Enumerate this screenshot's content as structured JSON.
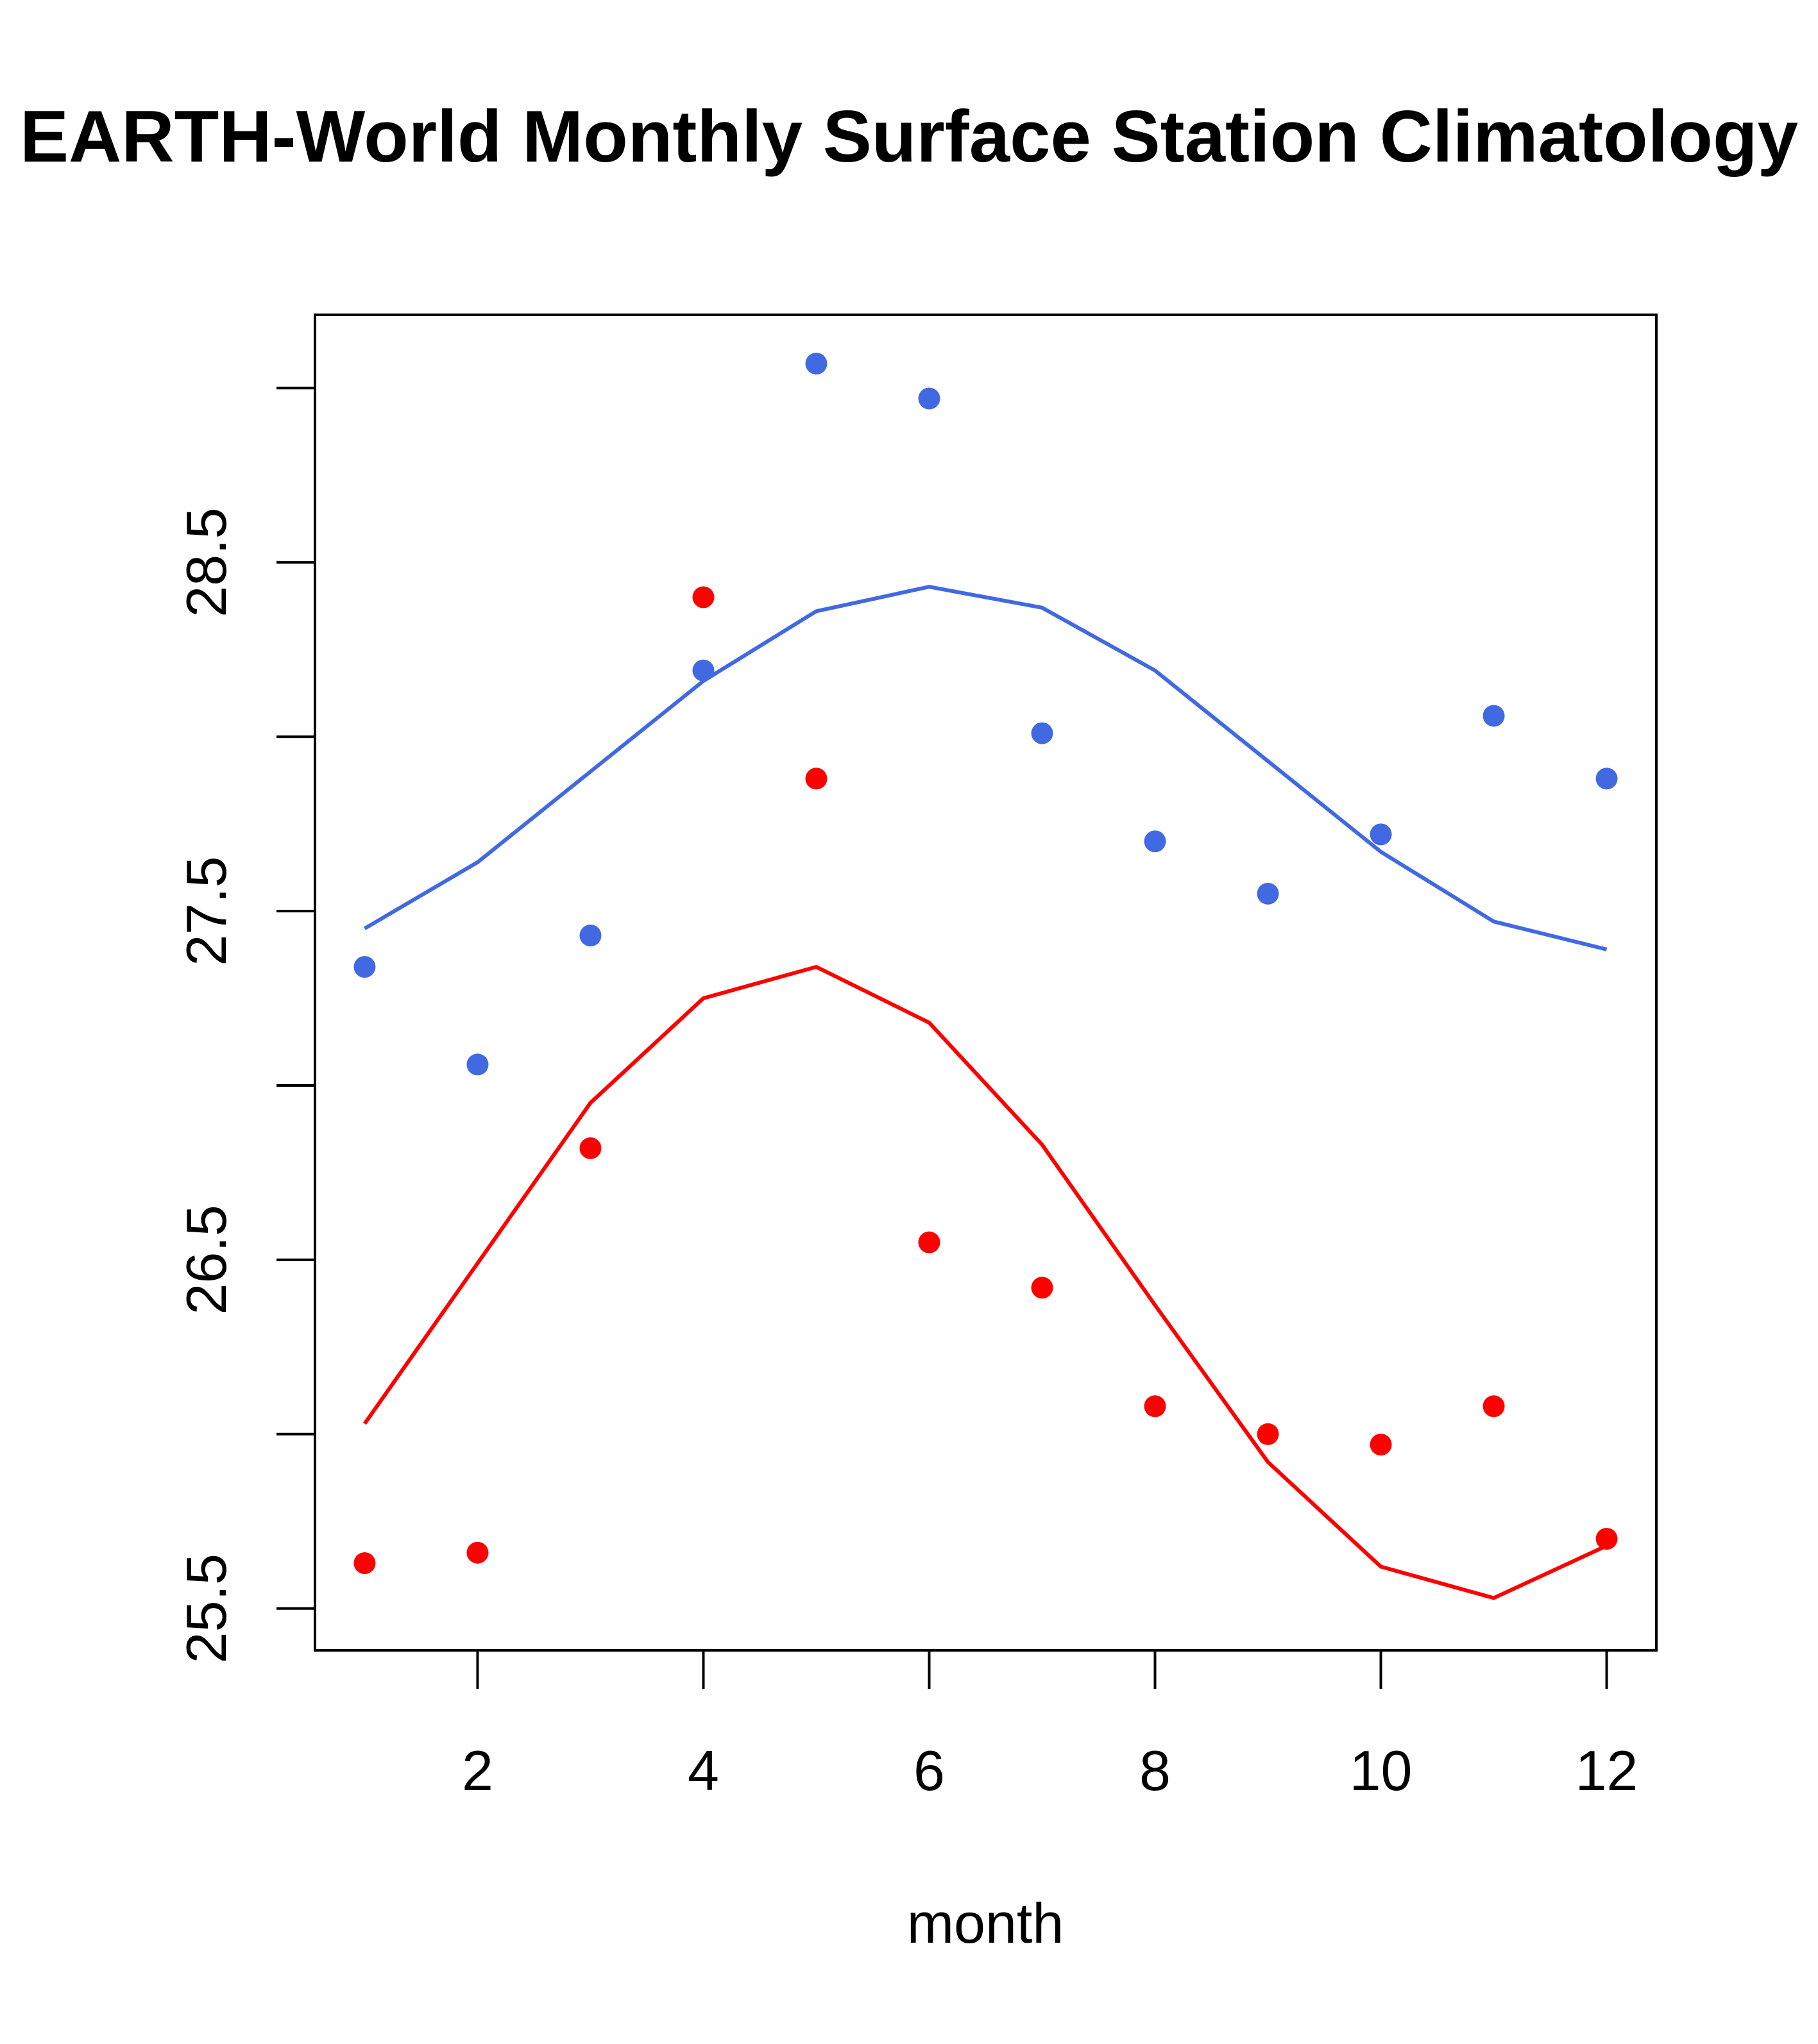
{
  "chart_data": {
    "type": "line",
    "title": "EARTH-World Monthly Surface Station Climatology",
    "xlabel": "month",
    "ylabel": "",
    "xlim": [
      0.56,
      12.44
    ],
    "ylim": [
      25.38,
      29.21
    ],
    "x_ticks": [
      2,
      4,
      6,
      8,
      10,
      12
    ],
    "x_tick_labels": [
      "2",
      "4",
      "6",
      "8",
      "10",
      "12"
    ],
    "y_ticks": [
      25.5,
      26.0,
      26.5,
      27.0,
      27.5,
      28.0,
      28.5,
      29.0
    ],
    "y_tick_labels": [
      "25.5",
      "",
      "26.5",
      "",
      "27.5",
      "",
      "28.5",
      ""
    ],
    "grid": false,
    "legend": "none",
    "x": [
      1,
      2,
      3,
      4,
      5,
      6,
      7,
      8,
      9,
      10,
      11,
      12
    ],
    "series": [
      {
        "name": "blue-points",
        "kind": "points",
        "color": "#4169E1",
        "values": [
          27.34,
          27.06,
          27.43,
          28.19,
          29.07,
          28.97,
          28.01,
          27.7,
          27.55,
          27.72,
          28.06,
          27.88
        ]
      },
      {
        "name": "blue-line",
        "kind": "line",
        "color": "#4169E1",
        "values": [
          27.45,
          27.64,
          27.9,
          28.16,
          28.36,
          28.43,
          28.37,
          28.19,
          27.93,
          27.67,
          27.47,
          27.39
        ]
      },
      {
        "name": "red-points",
        "kind": "points",
        "color": "#FF0000",
        "values": [
          25.63,
          25.66,
          26.82,
          28.4,
          27.88,
          26.55,
          26.42,
          26.08,
          26.0,
          25.97,
          26.08,
          25.7
        ]
      },
      {
        "name": "red-line",
        "kind": "line",
        "color": "#FF0000",
        "values": [
          26.03,
          26.49,
          26.95,
          27.25,
          27.34,
          27.18,
          26.83,
          26.37,
          25.92,
          25.62,
          25.53,
          25.68
        ]
      }
    ]
  }
}
